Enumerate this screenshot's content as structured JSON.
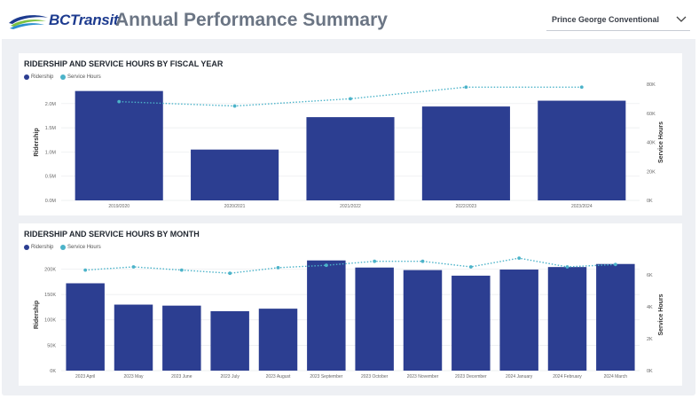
{
  "header": {
    "logo_text": "BCTransit",
    "title": "Annual Performance Summary",
    "system_select": {
      "value": "Prince George Conventional"
    }
  },
  "colors": {
    "ridership": "#2c3e91",
    "service_hours": "#4cb3c9",
    "title_text": "#6b7584",
    "background": "#eef0f4"
  },
  "icons": {
    "dropdown": "chevron-down-icon",
    "logo": "bctransit-logo-icon"
  },
  "chart_data": [
    {
      "type": "bar",
      "title": "RIDERSHIP AND SERVICE HOURS BY FISCAL YEAR",
      "categories": [
        "2019/2020",
        "2020/2021",
        "2021/2022",
        "2022/2023",
        "2023/2024"
      ],
      "series": [
        {
          "name": "Ridership",
          "type": "bar",
          "axis": "left",
          "values": [
            2260000,
            1050000,
            1720000,
            1940000,
            2060000
          ]
        },
        {
          "name": "Service Hours",
          "type": "line",
          "axis": "right",
          "values": [
            68000,
            65000,
            70000,
            78000,
            78000
          ]
        }
      ],
      "ylabel": "Ridership",
      "y2label": "Service Hours",
      "ylim": [
        0,
        2400000
      ],
      "y2lim": [
        0,
        80000
      ],
      "yticks": [
        0,
        500000,
        1000000,
        1500000,
        2000000
      ],
      "ytick_labels": [
        "0.0M",
        "0.5M",
        "1.0M",
        "1.5M",
        "2.0M"
      ],
      "y2ticks": [
        0,
        20000,
        40000,
        60000,
        80000
      ],
      "y2tick_labels": [
        "0K",
        "20K",
        "40K",
        "60K",
        "80K"
      ],
      "legend": "top-left",
      "grid": true
    },
    {
      "type": "bar",
      "title": "RIDERSHIP AND SERVICE HOURS BY MONTH",
      "categories": [
        "2023 April",
        "2023 May",
        "2023 June",
        "2023 July",
        "2023 August",
        "2023 September",
        "2023 October",
        "2023 November",
        "2023 December",
        "2024 January",
        "2024 February",
        "2024 March"
      ],
      "series": [
        {
          "name": "Ridership",
          "type": "bar",
          "axis": "left",
          "values": [
            172000,
            130000,
            128000,
            117000,
            122000,
            217000,
            203000,
            198000,
            187000,
            199000,
            204000,
            210000
          ]
        },
        {
          "name": "Service Hours",
          "type": "line",
          "axis": "right",
          "values": [
            6300,
            6500,
            6300,
            6100,
            6450,
            6600,
            6850,
            6850,
            6500,
            7050,
            6500,
            6650
          ]
        }
      ],
      "ylabel": "Ridership",
      "y2label": "Service Hours",
      "ylim": [
        0,
        220000
      ],
      "y2lim": [
        0,
        7000
      ],
      "yticks": [
        0,
        50000,
        100000,
        150000,
        200000
      ],
      "ytick_labels": [
        "0K",
        "50K",
        "100K",
        "150K",
        "200K"
      ],
      "y2ticks": [
        0,
        2000,
        4000,
        6000
      ],
      "y2tick_labels": [
        "0K",
        "2K",
        "4K",
        "6K"
      ],
      "legend": "top-left",
      "grid": true
    }
  ]
}
